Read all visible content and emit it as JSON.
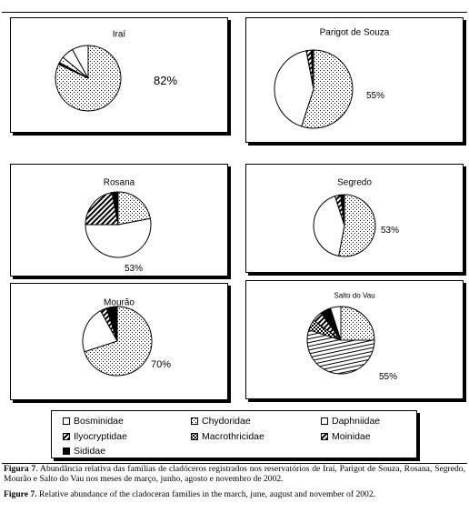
{
  "colors": {
    "line": "#000000",
    "background": "#ffffff"
  },
  "chart_data": [
    {
      "type": "pie",
      "title": "Iraí",
      "slices": [
        {
          "family": "Chydoridae",
          "value": 82,
          "pattern": "dots"
        },
        {
          "family": "Moinidae",
          "value": 1,
          "pattern": "solid"
        },
        {
          "family": "Daphniidae",
          "value": 3,
          "pattern": "dots-sparse"
        },
        {
          "family": "Bosminidae",
          "value": 6,
          "pattern": "white"
        },
        {
          "family": "Daphniidae",
          "value": 8,
          "pattern": "white"
        }
      ],
      "label": "82%"
    },
    {
      "type": "pie",
      "title": "Parigot de Souza",
      "slices": [
        {
          "family": "Chydoridae",
          "value": 55,
          "pattern": "dots"
        },
        {
          "family": "Daphniidae",
          "value": 42,
          "pattern": "white"
        },
        {
          "family": "Ilyocryptidae",
          "value": 2,
          "pattern": "stripes"
        },
        {
          "family": "Moinidae",
          "value": 1,
          "pattern": "solid"
        }
      ],
      "label": "55%"
    },
    {
      "type": "pie",
      "title": "Rosana",
      "slices": [
        {
          "family": "Chydoridae",
          "value": 22,
          "pattern": "dots"
        },
        {
          "family": "Bosminidae",
          "value": 53,
          "pattern": "white"
        },
        {
          "family": "Ilyocryptidae",
          "value": 22,
          "pattern": "stripes"
        },
        {
          "family": "Moinidae",
          "value": 3,
          "pattern": "solid"
        }
      ],
      "label": "53%"
    },
    {
      "type": "pie",
      "title": "Segredo",
      "slices": [
        {
          "family": "Chydoridae",
          "value": 53,
          "pattern": "dots"
        },
        {
          "family": "Bosminidae",
          "value": 42,
          "pattern": "white"
        },
        {
          "family": "Ilyocryptidae",
          "value": 3,
          "pattern": "stripes"
        },
        {
          "family": "Moinidae",
          "value": 2,
          "pattern": "solid"
        }
      ],
      "label": "53%"
    },
    {
      "type": "pie",
      "title": "Mourão",
      "slices": [
        {
          "family": "Chydoridae",
          "value": 70,
          "pattern": "dots"
        },
        {
          "family": "Bosminidae",
          "value": 22,
          "pattern": "white"
        },
        {
          "family": "Ilyocryptidae",
          "value": 3,
          "pattern": "stripes"
        },
        {
          "family": "Moinidae",
          "value": 5,
          "pattern": "solid"
        }
      ],
      "label": "70%"
    },
    {
      "type": "pie",
      "title": "Salto do Vau",
      "slices": [
        {
          "family": "Daphniidae",
          "value": 25,
          "pattern": "dots"
        },
        {
          "family": "Bosminidae",
          "value": 55,
          "pattern": "hlines"
        },
        {
          "family": "Macrothricidae",
          "value": 5,
          "pattern": "checker"
        },
        {
          "family": "Ilyocryptidae",
          "value": 5,
          "pattern": "stripes"
        },
        {
          "family": "Moinidae",
          "value": 5,
          "pattern": "solid"
        },
        {
          "family": "Sididae",
          "value": 5,
          "pattern": "white"
        }
      ],
      "label": "55%"
    }
  ],
  "legend": [
    {
      "label": "Bosminidae",
      "pattern": "white"
    },
    {
      "label": "Chydoridae",
      "pattern": "dots"
    },
    {
      "label": "Daphniidae",
      "pattern": "white"
    },
    {
      "label": "Ilyocryptidae",
      "pattern": "stripes"
    },
    {
      "label": "Macrothricidae",
      "pattern": "checker"
    },
    {
      "label": "Moinidae",
      "pattern": "stripes"
    },
    {
      "label": "Sididae",
      "pattern": "solid"
    }
  ],
  "caption": {
    "pt_label": "Figura 7",
    "pt_text": ". Abundância relativa das famílias de cladóceros registrados nos reservatórios de Iraí, Parigot de Souza, Rosana, Segredo, Mourão e Salto do Vau nos meses de março, junho, agosto e novembro de 2002.",
    "en_label": "Figure 7.",
    "en_text": "  Relative abundance of the cladoceran families in the march, june, august and november of 2002."
  }
}
